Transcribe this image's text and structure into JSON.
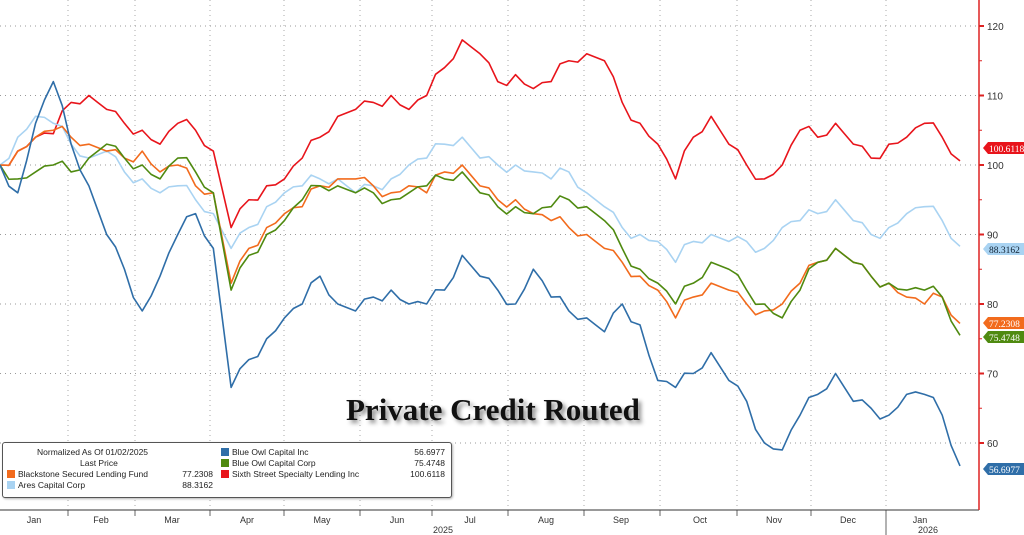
{
  "chart_data": {
    "type": "line",
    "title": "Private Credit Routed",
    "legend_header": [
      "Normalized As Of 01/02/2025",
      "Last Price"
    ],
    "legend_placement": "bottom-left",
    "x_labels": [
      "Jan",
      "Feb",
      "Mar",
      "Apr",
      "May",
      "Jun",
      "Jul",
      "Aug",
      "Sep",
      "Oct",
      "Nov",
      "Dec",
      "Jan"
    ],
    "year_labels": [
      "2025",
      "2026"
    ],
    "y_ticks": [
      60,
      70,
      80,
      90,
      100,
      110,
      120
    ],
    "ylim": [
      52,
      123
    ],
    "grid": true,
    "series": [
      {
        "name": "Sixth Street Specialty Lending Inc",
        "color": "#e8141b",
        "last": "100.6118",
        "values": [
          100,
          102,
          104,
          104.5,
          109,
          110,
          108,
          106,
          105,
          103,
          106,
          105,
          102,
          91,
          95,
          97,
          98,
          101,
          104,
          107,
          108,
          109,
          110,
          108,
          110,
          114,
          118,
          116,
          112,
          113,
          111,
          112,
          115,
          116,
          115,
          109,
          106,
          103,
          98,
          104,
          107,
          103,
          100,
          98,
          100,
          105,
          104,
          106,
          103,
          101,
          103,
          104,
          106,
          104,
          100.6
        ]
      },
      {
        "name": "Ares Capital Corp",
        "color": "#a9d3f2",
        "last": "88.3162",
        "values": [
          100,
          104,
          107,
          106,
          103,
          101,
          102,
          99,
          98,
          96,
          97,
          95,
          93,
          88,
          91,
          94,
          96,
          97,
          98,
          98,
          96,
          97,
          98,
          100,
          101,
          103,
          104,
          101,
          100,
          100,
          99,
          98,
          99,
          96,
          94,
          91,
          90,
          89,
          86,
          89,
          90,
          89,
          89,
          88,
          91,
          92,
          93,
          95,
          92,
          90,
          91,
          93,
          94,
          92,
          88.3
        ]
      },
      {
        "name": "Blackstone Secured Lending Fund",
        "color": "#f26b1d",
        "last": "77.2308",
        "values": [
          100,
          102,
          104,
          105,
          104,
          103,
          102,
          101,
          102,
          99,
          100,
          97,
          96,
          83,
          88,
          91,
          93,
          94,
          97,
          98,
          98,
          97,
          96,
          97,
          96,
          99,
          100,
          97,
          95,
          95,
          93,
          92,
          91,
          90,
          88,
          86,
          84,
          82,
          78,
          81,
          83,
          82,
          80,
          79,
          80,
          83,
          86,
          88,
          86,
          84,
          83,
          81,
          80,
          81,
          77.2
        ]
      },
      {
        "name": "Blue Owl Capital Corp",
        "color": "#4f8a10",
        "last": "75.4748",
        "values": [
          100,
          98,
          99,
          100,
          99,
          101,
          103,
          101,
          100,
          98,
          101,
          99,
          96,
          82,
          87,
          90,
          92,
          95,
          97,
          97,
          96,
          96,
          95,
          96,
          97,
          98,
          99,
          96,
          94,
          94,
          93,
          94,
          95,
          94,
          92,
          88,
          85,
          83,
          80,
          83,
          86,
          85,
          82,
          80,
          78,
          82,
          86,
          88,
          86,
          84,
          83,
          82,
          82,
          81,
          75.5
        ]
      },
      {
        "name": "Blue Owl Capital Inc",
        "color": "#2f6ea8",
        "last": "56.6977",
        "values": [
          100,
          96,
          106,
          112,
          103,
          97,
          90,
          85,
          79,
          84,
          90,
          93,
          88,
          68,
          72,
          75,
          78,
          80,
          84,
          80,
          79,
          81,
          82,
          80,
          80,
          82,
          87,
          84,
          82,
          80,
          85,
          81,
          79,
          78,
          76,
          80,
          77,
          69,
          68,
          70,
          73,
          69,
          66,
          60,
          59,
          64,
          67,
          70,
          66,
          65,
          64,
          67,
          67,
          64,
          56.7
        ]
      }
    ]
  },
  "legend": {
    "col2": [
      {
        "name": "Blue Owl Capital Inc",
        "last": "56.6977"
      },
      {
        "name": "Blue Owl Capital Corp",
        "last": "75.4748"
      },
      {
        "name": "Sixth Street Specialty Lending Inc",
        "last": "100.6118"
      }
    ],
    "col1": [
      {
        "name": "Blackstone Secured Lending Fund",
        "last": "77.2308"
      },
      {
        "name": "Ares Capital Corp",
        "last": "88.3162"
      }
    ]
  }
}
